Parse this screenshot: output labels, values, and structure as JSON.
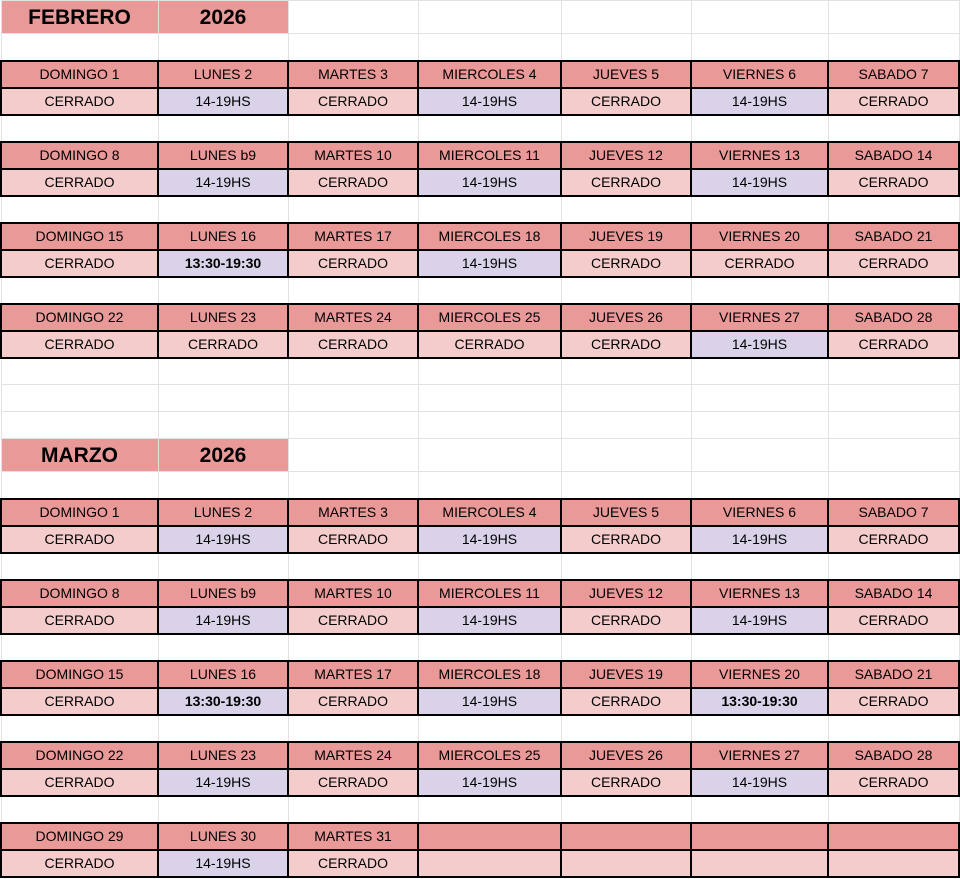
{
  "palette": {
    "header_fill": "#ea9999",
    "closed_fill": "#f4cccc",
    "open_fill": "#d9d2e9",
    "border": "#000000",
    "gridline": "#e2e2e2",
    "text": "#000000"
  },
  "statuses": {
    "closed_label": "CERRADO",
    "open_label": "14-19HS",
    "special_label": "13:30-19:30"
  },
  "months": [
    {
      "name": "FEBRERO",
      "year": "2026",
      "weeks": [
        {
          "days": [
            {
              "label": "DOMINGO 1",
              "value": "CERRADO",
              "type": "closed",
              "bold": false
            },
            {
              "label": "LUNES 2",
              "value": "14-19HS",
              "type": "open",
              "bold": false
            },
            {
              "label": "MARTES 3",
              "value": "CERRADO",
              "type": "closed",
              "bold": false
            },
            {
              "label": "MIERCOLES 4",
              "value": "14-19HS",
              "type": "open",
              "bold": false
            },
            {
              "label": "JUEVES 5",
              "value": "CERRADO",
              "type": "closed",
              "bold": false
            },
            {
              "label": "VIERNES 6",
              "value": "14-19HS",
              "type": "open",
              "bold": false
            },
            {
              "label": "SABADO 7",
              "value": "CERRADO",
              "type": "closed",
              "bold": false
            }
          ]
        },
        {
          "days": [
            {
              "label": "DOMINGO 8",
              "value": "CERRADO",
              "type": "closed",
              "bold": false
            },
            {
              "label": "LUNES b9",
              "value": "14-19HS",
              "type": "open",
              "bold": false
            },
            {
              "label": "MARTES 10",
              "value": "CERRADO",
              "type": "closed",
              "bold": false
            },
            {
              "label": "MIERCOLES 11",
              "value": "14-19HS",
              "type": "open",
              "bold": false
            },
            {
              "label": "JUEVES 12",
              "value": "CERRADO",
              "type": "closed",
              "bold": false
            },
            {
              "label": "VIERNES 13",
              "value": "14-19HS",
              "type": "open",
              "bold": false
            },
            {
              "label": "SABADO 14",
              "value": "CERRADO",
              "type": "closed",
              "bold": false
            }
          ]
        },
        {
          "days": [
            {
              "label": "DOMINGO 15",
              "value": "CERRADO",
              "type": "closed",
              "bold": false
            },
            {
              "label": "LUNES 16",
              "value": "13:30-19:30",
              "type": "open",
              "bold": true
            },
            {
              "label": "MARTES 17",
              "value": "CERRADO",
              "type": "closed",
              "bold": false
            },
            {
              "label": "MIERCOLES 18",
              "value": "14-19HS",
              "type": "open",
              "bold": false
            },
            {
              "label": "JUEVES 19",
              "value": "CERRADO",
              "type": "closed",
              "bold": false
            },
            {
              "label": "VIERNES 20",
              "value": "CERRADO",
              "type": "closed",
              "bold": false
            },
            {
              "label": "SABADO 21",
              "value": "CERRADO",
              "type": "closed",
              "bold": false
            }
          ]
        },
        {
          "days": [
            {
              "label": "DOMINGO 22",
              "value": "CERRADO",
              "type": "closed",
              "bold": false
            },
            {
              "label": "LUNES 23",
              "value": "CERRADO",
              "type": "closed",
              "bold": false
            },
            {
              "label": "MARTES 24",
              "value": "CERRADO",
              "type": "closed",
              "bold": false
            },
            {
              "label": "MIERCOLES 25",
              "value": "CERRADO",
              "type": "closed",
              "bold": false
            },
            {
              "label": "JUEVES 26",
              "value": "CERRADO",
              "type": "closed",
              "bold": false
            },
            {
              "label": "VIERNES 27",
              "value": "14-19HS",
              "type": "open",
              "bold": false
            },
            {
              "label": "SABADO 28",
              "value": "CERRADO",
              "type": "closed",
              "bold": false
            }
          ]
        }
      ]
    },
    {
      "name": "MARZO",
      "year": "2026",
      "weeks": [
        {
          "days": [
            {
              "label": "DOMINGO 1",
              "value": "CERRADO",
              "type": "closed",
              "bold": false
            },
            {
              "label": "LUNES 2",
              "value": "14-19HS",
              "type": "open",
              "bold": false
            },
            {
              "label": "MARTES 3",
              "value": "CERRADO",
              "type": "closed",
              "bold": false
            },
            {
              "label": "MIERCOLES 4",
              "value": "14-19HS",
              "type": "open",
              "bold": false
            },
            {
              "label": "JUEVES 5",
              "value": "CERRADO",
              "type": "closed",
              "bold": false
            },
            {
              "label": "VIERNES 6",
              "value": "14-19HS",
              "type": "open",
              "bold": false
            },
            {
              "label": "SABADO 7",
              "value": "CERRADO",
              "type": "closed",
              "bold": false
            }
          ]
        },
        {
          "days": [
            {
              "label": "DOMINGO 8",
              "value": "CERRADO",
              "type": "closed",
              "bold": false
            },
            {
              "label": "LUNES b9",
              "value": "14-19HS",
              "type": "open",
              "bold": false
            },
            {
              "label": "MARTES 10",
              "value": "CERRADO",
              "type": "closed",
              "bold": false
            },
            {
              "label": "MIERCOLES 11",
              "value": "14-19HS",
              "type": "open",
              "bold": false
            },
            {
              "label": "JUEVES 12",
              "value": "CERRADO",
              "type": "closed",
              "bold": false
            },
            {
              "label": "VIERNES 13",
              "value": "14-19HS",
              "type": "open",
              "bold": false
            },
            {
              "label": "SABADO 14",
              "value": "CERRADO",
              "type": "closed",
              "bold": false
            }
          ]
        },
        {
          "days": [
            {
              "label": "DOMINGO 15",
              "value": "CERRADO",
              "type": "closed",
              "bold": false
            },
            {
              "label": "LUNES 16",
              "value": "13:30-19:30",
              "type": "open",
              "bold": true
            },
            {
              "label": "MARTES 17",
              "value": "CERRADO",
              "type": "closed",
              "bold": false
            },
            {
              "label": "MIERCOLES 18",
              "value": "14-19HS",
              "type": "open",
              "bold": false
            },
            {
              "label": "JUEVES 19",
              "value": "CERRADO",
              "type": "closed",
              "bold": false
            },
            {
              "label": "VIERNES 20",
              "value": "13:30-19:30",
              "type": "open",
              "bold": true
            },
            {
              "label": "SABADO 21",
              "value": "CERRADO",
              "type": "closed",
              "bold": false
            }
          ]
        },
        {
          "days": [
            {
              "label": "DOMINGO 22",
              "value": "CERRADO",
              "type": "closed",
              "bold": false
            },
            {
              "label": "LUNES 23",
              "value": "14-19HS",
              "type": "open",
              "bold": false
            },
            {
              "label": "MARTES 24",
              "value": "CERRADO",
              "type": "closed",
              "bold": false
            },
            {
              "label": "MIERCOLES 25",
              "value": "14-19HS",
              "type": "open",
              "bold": false
            },
            {
              "label": "JUEVES 26",
              "value": "CERRADO",
              "type": "closed",
              "bold": false
            },
            {
              "label": "VIERNES 27",
              "value": "14-19HS",
              "type": "open",
              "bold": false
            },
            {
              "label": "SABADO 28",
              "value": "CERRADO",
              "type": "closed",
              "bold": false
            }
          ]
        },
        {
          "days": [
            {
              "label": "DOMINGO 29",
              "value": "CERRADO",
              "type": "closed",
              "bold": false
            },
            {
              "label": "LUNES 30",
              "value": "14-19HS",
              "type": "open",
              "bold": false
            },
            {
              "label": "MARTES 31",
              "value": "CERRADO",
              "type": "closed",
              "bold": false
            },
            {
              "label": "",
              "value": "",
              "type": "closed",
              "bold": false
            },
            {
              "label": "",
              "value": "",
              "type": "closed",
              "bold": false
            },
            {
              "label": "",
              "value": "",
              "type": "closed",
              "bold": false
            },
            {
              "label": "",
              "value": "",
              "type": "closed",
              "bold": false
            }
          ]
        }
      ]
    }
  ]
}
